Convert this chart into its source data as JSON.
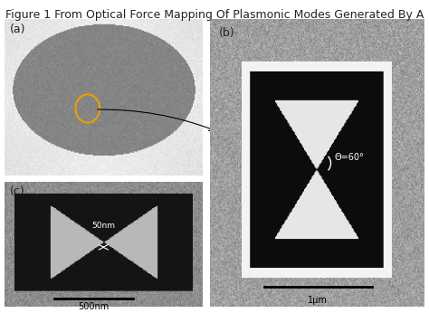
{
  "title": "Figure 1 From Optical Force Mapping Of Plasmonic Modes Generated By A",
  "title_fontsize": 9,
  "title_color": "#222222",
  "bg_color": "#ffffff",
  "panel_a_label": "(a)",
  "panel_b_label": "(b)",
  "panel_c_label": "(c)",
  "panel_label_fontsize": 9,
  "panel_label_color": "#222222",
  "scale_bar_b": "1μm",
  "scale_bar_c": "500nm",
  "annotation_b": "Θ=60°",
  "annotation_c": "50nm"
}
